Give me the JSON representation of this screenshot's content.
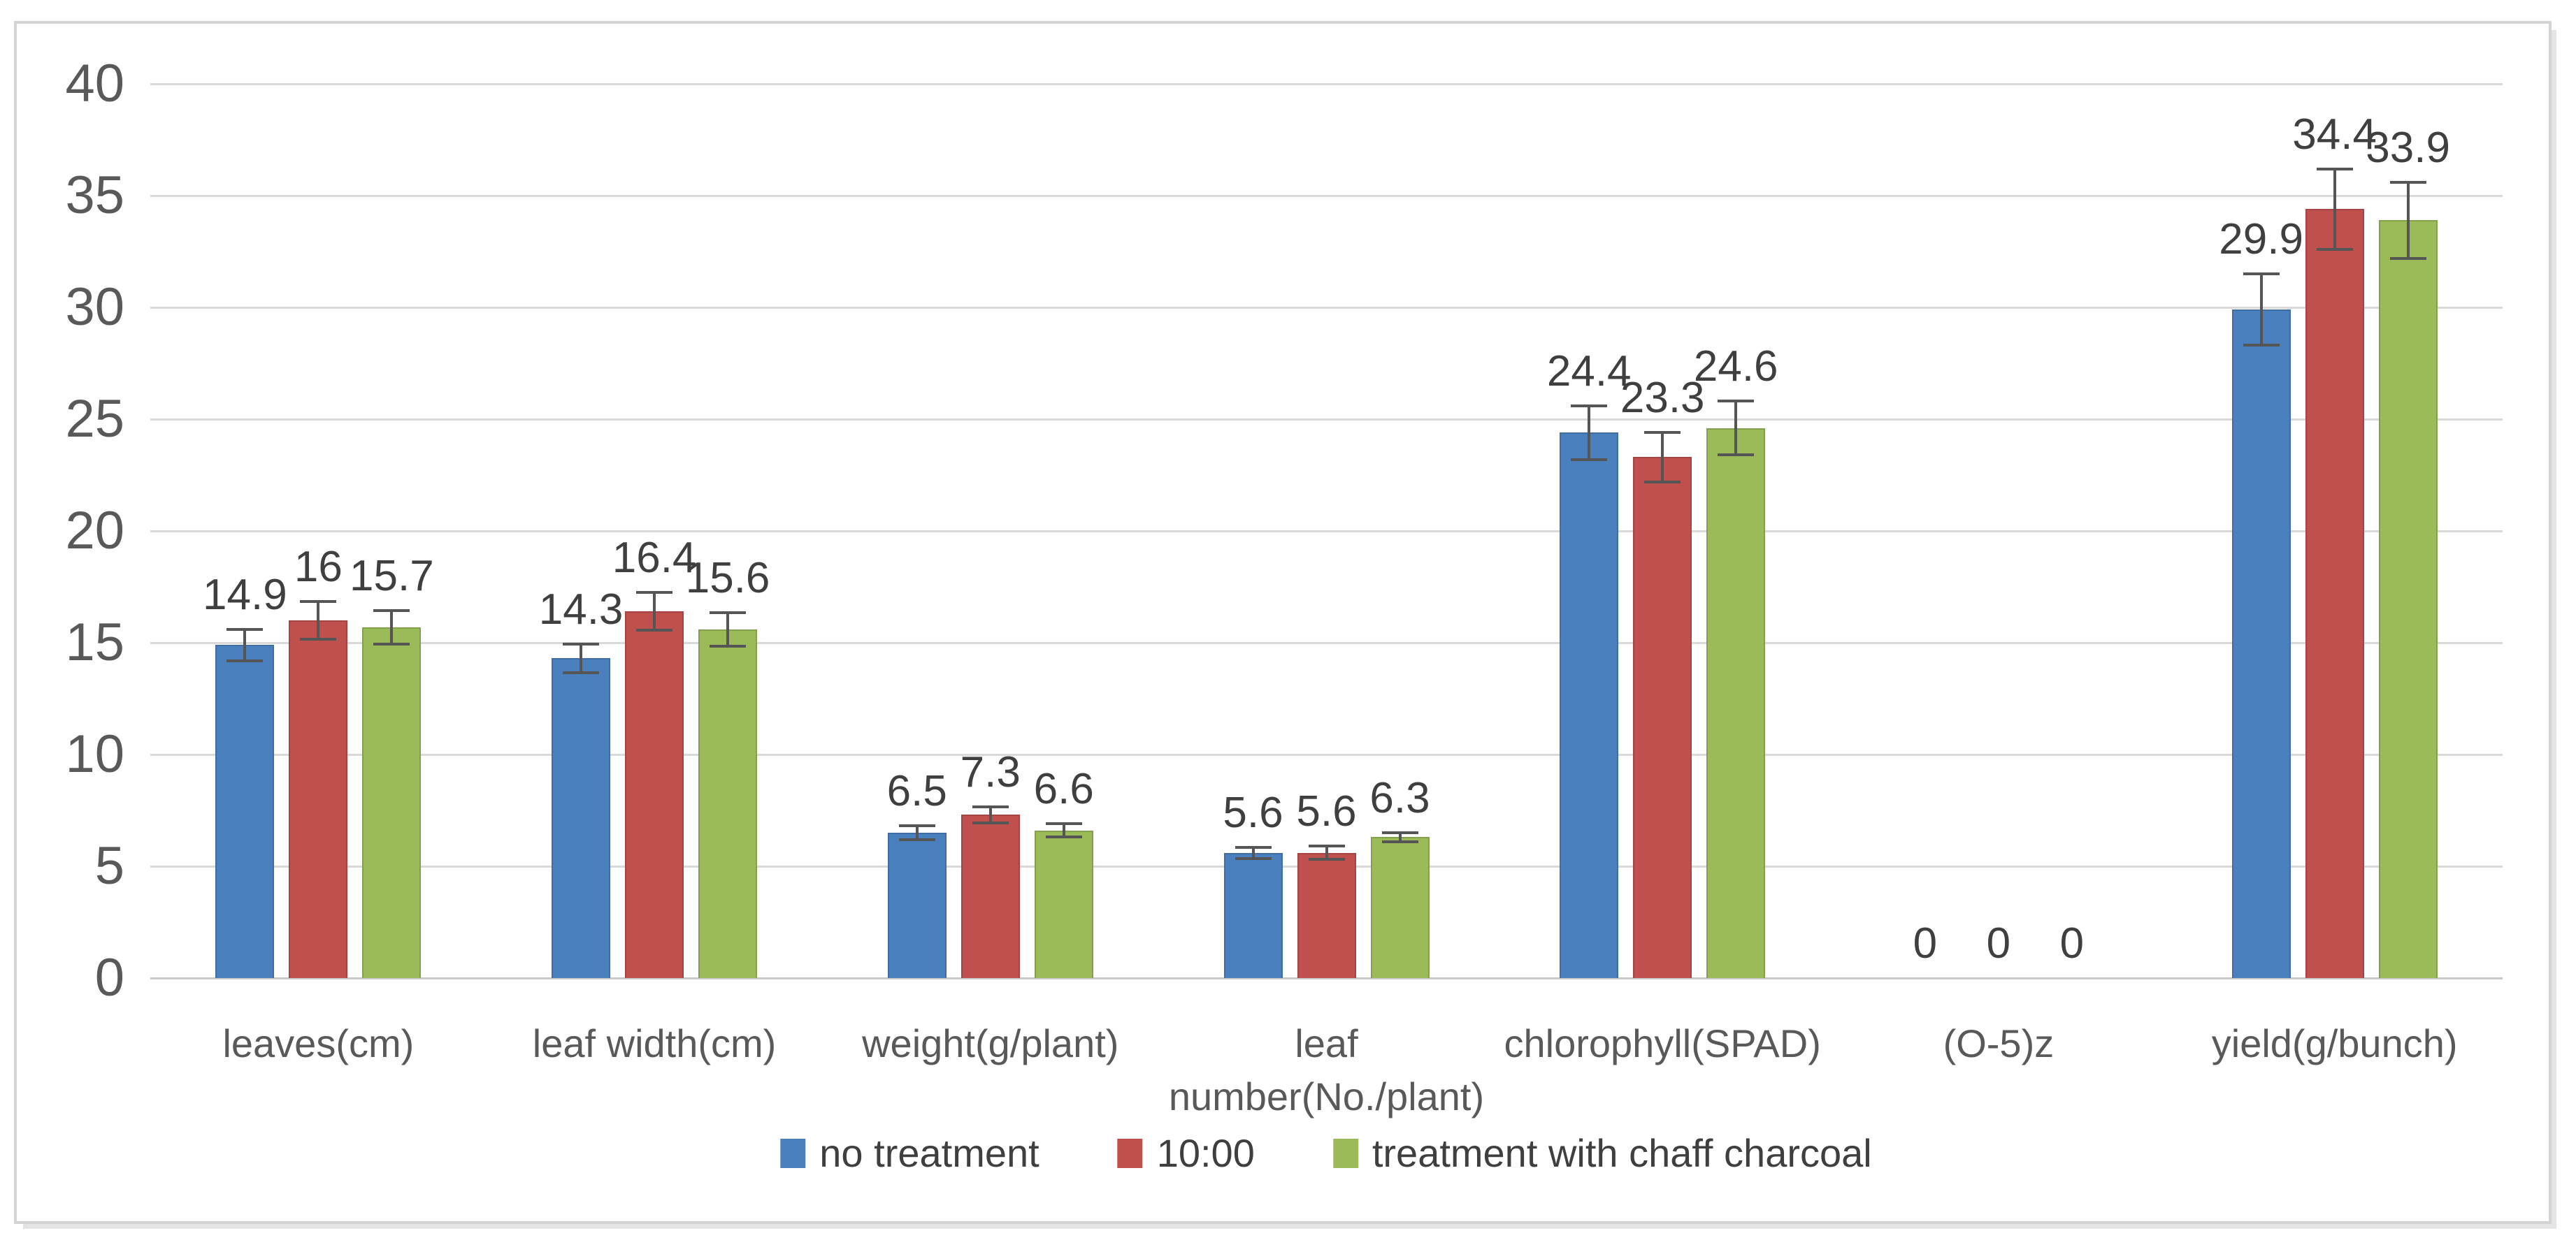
{
  "figure": {
    "background": "#ffffff",
    "frame_border_color": "#d4d4d4"
  },
  "chart_data": {
    "type": "bar",
    "title": "",
    "xlabel": "",
    "ylabel": "",
    "categories": [
      "leaves(cm)",
      "leaf width(cm)",
      "weight(g/plant)",
      "leaf\nnumber(No./plant)",
      "chlorophyll(SPAD)",
      "(O-5)z",
      "yield(g/bunch)"
    ],
    "series": [
      {
        "name": "no treatment",
        "color": "#4B80BF",
        "values": [
          14.9,
          14.3,
          6.5,
          5.6,
          24.4,
          0,
          29.9
        ],
        "labels": [
          "14.9",
          "14.3",
          "6.5",
          "5.6",
          "24.4",
          "0",
          "29.9"
        ],
        "errors": [
          0.7,
          0.65,
          0.3,
          0.25,
          1.2,
          0,
          1.6
        ]
      },
      {
        "name": "10:00",
        "color": "#C0504D",
        "values": [
          16,
          16.4,
          7.3,
          5.6,
          23.3,
          0,
          34.4
        ],
        "labels": [
          "16",
          "16.4",
          "7.3",
          "5.6",
          "23.3",
          "0",
          "34.4"
        ],
        "errors": [
          0.85,
          0.85,
          0.35,
          0.3,
          1.1,
          0,
          1.8
        ]
      },
      {
        "name": "treatment with chaff charcoal",
        "color": "#9BBB59",
        "values": [
          15.7,
          15.6,
          6.6,
          6.3,
          24.6,
          0,
          33.9
        ],
        "labels": [
          "15.7",
          "15.6",
          "6.6",
          "6.3",
          "24.6",
          "0",
          "33.9"
        ],
        "errors": [
          0.75,
          0.75,
          0.3,
          0.2,
          1.2,
          0,
          1.7
        ]
      }
    ],
    "ylim": [
      0,
      40
    ],
    "ytick_step": 5,
    "ytick_labels": [
      "0",
      "5",
      "10",
      "15",
      "20",
      "25",
      "30",
      "35",
      "40"
    ],
    "grid": true,
    "error_bars": true,
    "legend_position": "bottom",
    "gridline_color": "#d9d9d9",
    "baseline_color": "#c9c9c9",
    "axis_text_color": "#595959",
    "data_label_color": "#3f3f3f"
  }
}
